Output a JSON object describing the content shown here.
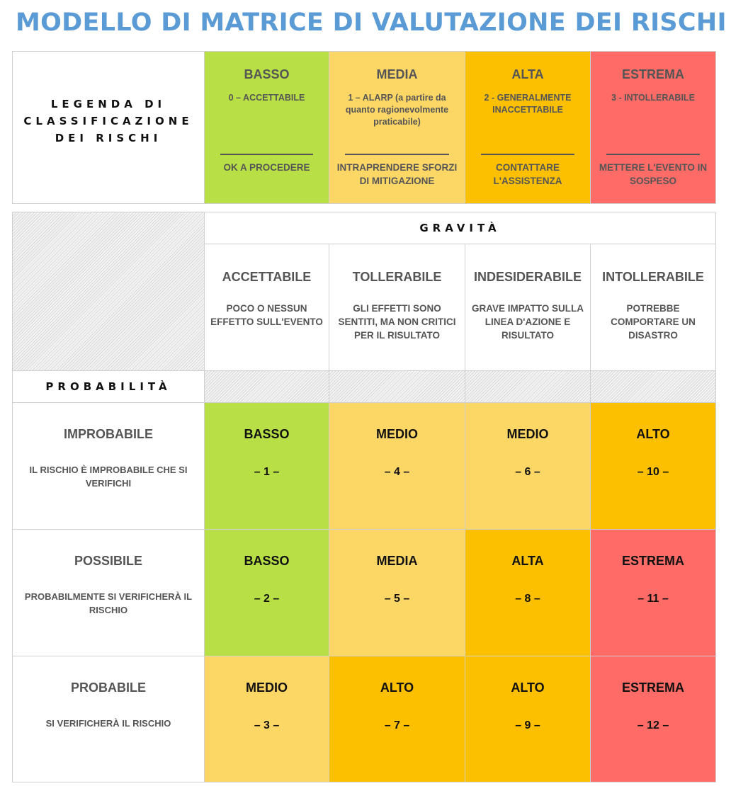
{
  "title": "MODELLO DI MATRICE DI VALUTAZIONE DEI RISCHI",
  "legend": {
    "heading": "LEGENDA DI CLASSIFICAZIONE DEI RISCHI",
    "levels": [
      {
        "name": "BASSO",
        "code": "0 – ACCETTABILE",
        "action": "OK A PROCEDERE",
        "color": "#b8e046"
      },
      {
        "name": "MEDIA",
        "code": "1 – ALARP (a partire da quanto ragionevolmente praticabile)",
        "action": "INTRAPRENDERE SFORZI DI MITIGAZIONE",
        "color": "#fdd766"
      },
      {
        "name": "ALTA",
        "code": "2 - GENERALMENTE INACCETTABILE",
        "action": "CONTATTARE L'ASSISTENZA",
        "color": "#fcc000"
      },
      {
        "name": "ESTREMA",
        "code": "3 - INTOLLERABILE",
        "action": "METTERE L'EVENTO IN SOSPESO",
        "color": "#ff6b66"
      }
    ]
  },
  "matrix": {
    "severity_heading": "GRAVITÀ",
    "probability_heading": "PROBABILITÀ",
    "severities": [
      {
        "name": "ACCETTABILE",
        "desc": "POCO O NESSUN EFFETTO SULL'EVENTO"
      },
      {
        "name": "TOLLERABILE",
        "desc": "GLI EFFETTI SONO SENTITI, MA NON CRITICI PER IL RISULTATO"
      },
      {
        "name": "INDESIDERABILE",
        "desc": "GRAVE IMPATTO SULLA LINEA D'AZIONE E RISULTATO"
      },
      {
        "name": "INTOLLERABILE",
        "desc": "POTREBBE COMPORTARE UN DISASTRO"
      }
    ],
    "rows": [
      {
        "name": "IMPROBABILE",
        "desc": "IL RISCHIO È IMPROBABILE CHE SI VERIFICHI",
        "cells": [
          {
            "label": "BASSO",
            "num": "– 1 –",
            "color": "#b8e046"
          },
          {
            "label": "MEDIO",
            "num": "– 4 –",
            "color": "#fdd766"
          },
          {
            "label": "MEDIO",
            "num": "– 6 –",
            "color": "#fdd766"
          },
          {
            "label": "ALTO",
            "num": "– 10 –",
            "color": "#fcc000"
          }
        ]
      },
      {
        "name": "POSSIBILE",
        "desc": "PROBABILMENTE SI VERIFICHERÀ IL RISCHIO",
        "cells": [
          {
            "label": "BASSO",
            "num": "– 2 –",
            "color": "#b8e046"
          },
          {
            "label": "MEDIA",
            "num": "– 5 –",
            "color": "#fdd766"
          },
          {
            "label": "ALTA",
            "num": "– 8 –",
            "color": "#fcc000"
          },
          {
            "label": "ESTREMA",
            "num": "– 11 –",
            "color": "#ff6b66"
          }
        ]
      },
      {
        "name": "PROBABILE",
        "desc": "SI VERIFICHERÀ IL RISCHIO",
        "cells": [
          {
            "label": "MEDIO",
            "num": "– 3 –",
            "color": "#fdd766"
          },
          {
            "label": "ALTO",
            "num": "– 7 –",
            "color": "#fcc000"
          },
          {
            "label": "ALTO",
            "num": "– 9 –",
            "color": "#fcc000"
          },
          {
            "label": "ESTREMA",
            "num": "– 12 –",
            "color": "#ff6b66"
          }
        ]
      }
    ]
  }
}
